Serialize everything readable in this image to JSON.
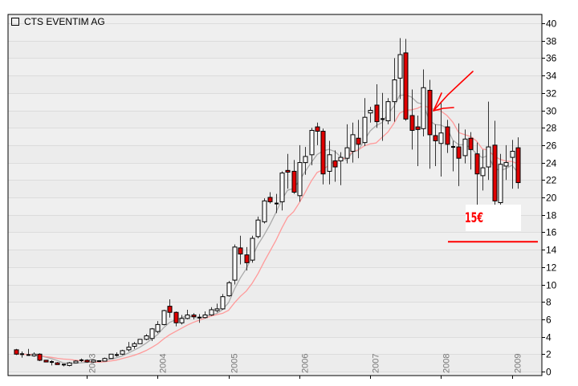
{
  "chart_data": {
    "type": "candlestick",
    "title": "CTS EVENTIM AG",
    "legend": {
      "label": "CTS EVENTIM AG",
      "placement": "top-left"
    },
    "interval": "monthly",
    "start": "2002-01",
    "ylim": [
      0,
      40
    ],
    "yticks": [
      0,
      2,
      4,
      6,
      8,
      10,
      12,
      14,
      16,
      18,
      20,
      22,
      24,
      26,
      28,
      30,
      32,
      34,
      36,
      38,
      40
    ],
    "xticks": [
      {
        "label": "2003",
        "index": 12
      },
      {
        "label": "2004",
        "index": 24
      },
      {
        "label": "2005",
        "index": 36
      },
      {
        "label": "2006",
        "index": 48
      },
      {
        "label": "2007",
        "index": 60
      },
      {
        "label": "2008",
        "index": 72
      },
      {
        "label": "2009",
        "index": 84
      }
    ],
    "grid": true,
    "ohlc_fields": [
      "open",
      "high",
      "low",
      "close"
    ],
    "ohlc": [
      [
        2.5,
        2.6,
        1.9,
        2.0
      ],
      [
        2.0,
        2.3,
        1.6,
        2.0
      ],
      [
        1.9,
        2.6,
        1.8,
        1.9
      ],
      [
        1.8,
        2.2,
        1.7,
        2.0
      ],
      [
        2.0,
        2.1,
        1.2,
        1.3
      ],
      [
        1.3,
        1.3,
        1.1,
        1.1
      ],
      [
        1.1,
        1.3,
        0.7,
        1.1
      ],
      [
        1.0,
        1.1,
        0.8,
        0.8
      ],
      [
        0.8,
        0.8,
        0.6,
        0.7
      ],
      [
        0.7,
        1.1,
        0.6,
        1.0
      ],
      [
        1.0,
        1.3,
        1.0,
        1.2
      ],
      [
        1.3,
        1.5,
        1.1,
        1.3
      ],
      [
        1.3,
        1.4,
        1.0,
        1.1
      ],
      [
        1.1,
        1.3,
        1.0,
        1.3
      ],
      [
        1.2,
        1.3,
        1.1,
        1.2
      ],
      [
        1.2,
        1.6,
        1.2,
        1.5
      ],
      [
        1.5,
        2.0,
        1.5,
        2.0
      ],
      [
        1.9,
        2.2,
        1.7,
        1.9
      ],
      [
        2.0,
        2.5,
        1.9,
        2.4
      ],
      [
        2.5,
        3.4,
        2.3,
        2.8
      ],
      [
        2.9,
        3.4,
        2.6,
        3.2
      ],
      [
        3.2,
        3.7,
        3.2,
        3.7
      ],
      [
        3.7,
        4.3,
        3.6,
        4.1
      ],
      [
        3.8,
        5.0,
        3.5,
        4.9
      ],
      [
        4.6,
        5.8,
        4.4,
        5.4
      ],
      [
        5.4,
        7.1,
        5.3,
        7.0
      ],
      [
        7.5,
        8.3,
        6.2,
        6.8
      ],
      [
        6.8,
        6.9,
        5.2,
        5.6
      ],
      [
        5.6,
        6.5,
        5.4,
        6.1
      ],
      [
        6.1,
        7.1,
        6.0,
        6.5
      ],
      [
        6.5,
        6.7,
        6.0,
        6.3
      ],
      [
        6.2,
        6.6,
        5.6,
        6.2
      ],
      [
        6.2,
        6.9,
        6.1,
        6.5
      ],
      [
        6.5,
        7.4,
        6.4,
        7.1
      ],
      [
        7.0,
        7.8,
        6.8,
        7.2
      ],
      [
        7.2,
        8.9,
        7.1,
        8.6
      ],
      [
        8.7,
        10.4,
        8.6,
        10.2
      ],
      [
        10.5,
        14.6,
        10.0,
        14.3
      ],
      [
        14.2,
        15.6,
        12.3,
        13.5
      ],
      [
        13.4,
        14.3,
        11.6,
        12.5
      ],
      [
        12.8,
        15.6,
        12.5,
        15.3
      ],
      [
        15.5,
        17.8,
        15.3,
        17.4
      ],
      [
        17.2,
        19.9,
        17.0,
        19.6
      ],
      [
        20.0,
        20.6,
        19.3,
        19.5
      ],
      [
        19.3,
        20.4,
        18.2,
        19.3
      ],
      [
        19.5,
        23.0,
        18.5,
        22.8
      ],
      [
        23.1,
        25.0,
        21.0,
        22.9
      ],
      [
        23.0,
        24.3,
        20.4,
        20.6
      ],
      [
        20.2,
        26.0,
        19.5,
        24.0
      ],
      [
        24.0,
        25.8,
        22.6,
        24.7
      ],
      [
        24.9,
        28.0,
        23.7,
        27.7
      ],
      [
        28.1,
        28.6,
        26.0,
        27.6
      ],
      [
        27.6,
        27.9,
        21.5,
        22.7
      ],
      [
        23.0,
        26.5,
        21.5,
        24.9
      ],
      [
        24.2,
        25.4,
        21.8,
        23.5
      ],
      [
        24.2,
        25.2,
        21.4,
        24.6
      ],
      [
        24.5,
        28.4,
        23.9,
        25.7
      ],
      [
        25.3,
        28.6,
        24.0,
        27.2
      ],
      [
        26.8,
        28.9,
        24.5,
        26.1
      ],
      [
        26.3,
        31.4,
        25.9,
        29.2
      ],
      [
        29.7,
        30.4,
        28.6,
        30.0
      ],
      [
        30.6,
        33.0,
        28.0,
        28.7
      ],
      [
        29.0,
        32.0,
        26.5,
        29.0
      ],
      [
        28.8,
        31.4,
        28.4,
        31.0
      ],
      [
        31.0,
        36.0,
        28.7,
        33.5
      ],
      [
        33.7,
        38.3,
        31.3,
        36.4
      ],
      [
        36.6,
        38.2,
        28.8,
        29.0
      ],
      [
        29.4,
        32.4,
        25.5,
        27.7
      ],
      [
        28.1,
        29.4,
        23.6,
        27.8
      ],
      [
        27.9,
        34.7,
        27.0,
        32.6
      ],
      [
        32.3,
        33.5,
        23.3,
        27.2
      ],
      [
        27.1,
        28.4,
        23.6,
        26.5
      ],
      [
        26.2,
        31.0,
        22.4,
        27.4
      ],
      [
        28.1,
        28.9,
        25.1,
        26.1
      ],
      [
        25.8,
        26.5,
        23.0,
        25.7
      ],
      [
        25.8,
        28.5,
        21.3,
        24.5
      ],
      [
        24.8,
        27.8,
        23.9,
        26.7
      ],
      [
        26.8,
        27.5,
        23.2,
        25.5
      ],
      [
        25.0,
        26.3,
        18.8,
        22.7
      ],
      [
        22.5,
        25.5,
        20.8,
        23.4
      ],
      [
        23.5,
        31.0,
        22.0,
        25.8
      ],
      [
        26.0,
        28.8,
        16.5,
        19.6
      ],
      [
        19.4,
        25.0,
        18.5,
        23.8
      ],
      [
        23.6,
        26.0,
        22.0,
        24.0
      ],
      [
        24.6,
        26.6,
        21.0,
        25.3
      ],
      [
        25.7,
        26.9,
        21.0,
        21.7
      ]
    ],
    "overlays": [
      {
        "name": "moving-average-short",
        "color": "#aaaaaa"
      },
      {
        "name": "moving-average-long",
        "color": "#ff9a9a"
      }
    ],
    "annotations": {
      "target_label": "15€",
      "target_level": 15,
      "arrow_tip_value": 29.8,
      "color": "#ff0000"
    },
    "colors": {
      "up": "#ffffff",
      "down": "#e00000",
      "wick": "#333333",
      "background": "#efefef",
      "grid": "#dcdcdc"
    }
  }
}
